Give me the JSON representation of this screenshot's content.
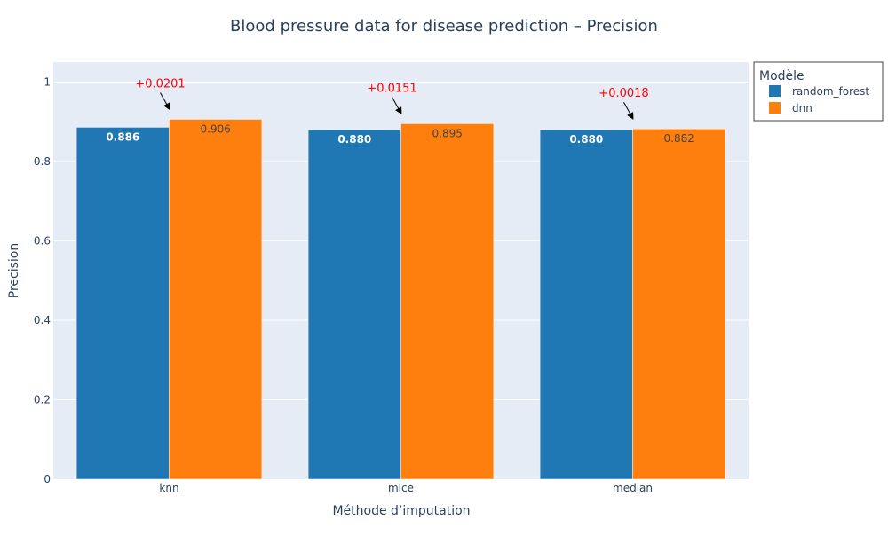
{
  "chart_data": {
    "type": "bar",
    "title": "Blood pressure data for disease prediction – Precision",
    "xlabel": "Méthode d’imputation",
    "ylabel": "Precision",
    "ylim": [
      0,
      1.05
    ],
    "yticks": [
      "0",
      "0.2",
      "0.4",
      "0.6",
      "0.8",
      "1"
    ],
    "categories": [
      "knn",
      "mice",
      "median"
    ],
    "series": [
      {
        "name": "random_forest",
        "color": "#1f77b4",
        "values": [
          0.886,
          0.88,
          0.88
        ],
        "labels": [
          "0.886",
          "0.880",
          "0.880"
        ]
      },
      {
        "name": "dnn",
        "color": "#ff7f0e",
        "values": [
          0.906,
          0.895,
          0.882
        ],
        "labels": [
          "0.906",
          "0.895",
          "0.882"
        ]
      }
    ],
    "annotations": [
      "+0.0201",
      "+0.0151",
      "+0.0018"
    ],
    "annotation_color": "#ff0000",
    "grid": true,
    "legend": {
      "title": "Modèle",
      "position": "top-right"
    },
    "plot_bg": "#e5ecf6"
  }
}
